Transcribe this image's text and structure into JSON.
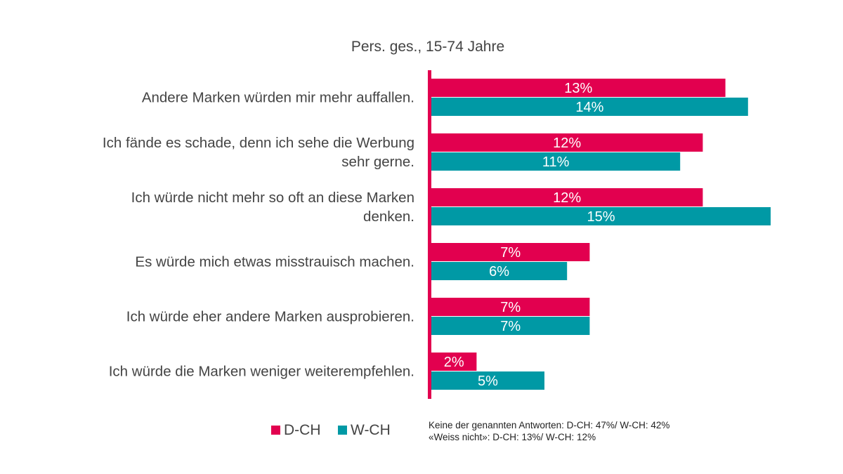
{
  "chart_data": {
    "type": "bar",
    "orientation": "horizontal",
    "title": "",
    "subtitle": "Pers. ges., 15-74 Jahre",
    "categories": [
      [
        "Andere Marken würden mir mehr auffallen."
      ],
      [
        "Ich fände es schade, denn ich sehe die Werbung",
        "sehr gerne."
      ],
      [
        "Ich würde nicht mehr so oft an diese Marken",
        "denken."
      ],
      [
        "Es würde mich etwas misstrauisch machen."
      ],
      [
        "Ich würde eher andere Marken ausprobieren."
      ],
      [
        "Ich würde die Marken weniger weiterempfehlen."
      ]
    ],
    "series": [
      {
        "name": "D-CH",
        "color": "#e2004f",
        "values": [
          13,
          12,
          12,
          7,
          7,
          2
        ]
      },
      {
        "name": "W-CH",
        "color": "#0099a5",
        "values": [
          14,
          11,
          15,
          6,
          7,
          5
        ]
      }
    ],
    "value_suffix": "%",
    "xlim": [
      0,
      15
    ],
    "axis_color": "#e2004f",
    "grid": false,
    "legend": "bottom-left",
    "notes": [
      "Keine der genannten Antworten: D-CH: 47%/ W-CH: 42%",
      "«Weiss nicht»: D-CH: 13%/ W-CH: 12%"
    ]
  }
}
